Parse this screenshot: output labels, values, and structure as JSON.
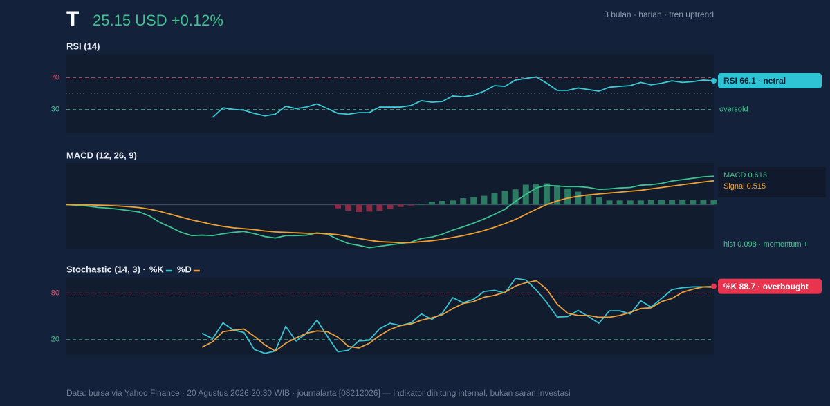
{
  "header": {
    "symbol": "T",
    "quote": "25.15 USD +0.12%",
    "meta": "3 bulan · harian · tren uptrend"
  },
  "footer": "Data: bursa via Yahoo Finance · 20 Agustus 2026 20:30 WIB · journalarta [08212026] — indikator dihitung internal, bukan saran investasi",
  "chart_data": [
    {
      "type": "line",
      "title": "RSI (14)",
      "ylim": [
        0,
        100
      ],
      "yticks": [
        30,
        70
      ],
      "level_colors": [
        "#3ec28f",
        "#e05570"
      ],
      "midline": 50,
      "annotation": "oversold",
      "label_style": "badge",
      "series": [
        {
          "name": "RSI",
          "color": "#3cc8d4",
          "badge_color": "#2ec4d6",
          "badge_text_color": "#0e1a2b",
          "last_label": "RSI 66.1 · netral",
          "values": [
            null,
            null,
            null,
            null,
            null,
            null,
            null,
            null,
            null,
            null,
            null,
            null,
            null,
            null,
            20,
            32,
            30,
            29,
            25,
            22,
            24,
            34,
            31,
            33,
            37,
            31,
            25,
            24,
            26,
            26,
            33,
            33,
            33,
            35,
            41,
            39,
            40,
            47,
            46,
            48,
            53,
            60,
            59,
            67,
            69,
            71,
            63,
            54,
            54,
            57,
            55,
            53,
            58,
            59,
            60,
            64,
            61,
            63,
            66,
            64,
            65,
            67,
            66.1
          ]
        }
      ]
    },
    {
      "type": "line",
      "title": "MACD (12, 26, 9)",
      "ylim": [
        -0.95,
        0.9
      ],
      "zero_line": true,
      "label_style": "legend",
      "series": [
        {
          "name": "MACD",
          "color": "#3ec28f",
          "last_label": "MACD 0.613",
          "values": [
            0,
            -0.015,
            -0.03,
            -0.06,
            -0.075,
            -0.1,
            -0.13,
            -0.16,
            -0.25,
            -0.39,
            -0.49,
            -0.6,
            -0.67,
            -0.66,
            -0.67,
            -0.63,
            -0.6,
            -0.58,
            -0.63,
            -0.69,
            -0.72,
            -0.67,
            -0.67,
            -0.66,
            -0.61,
            -0.64,
            -0.75,
            -0.84,
            -0.88,
            -0.93,
            -0.9,
            -0.87,
            -0.84,
            -0.81,
            -0.73,
            -0.7,
            -0.64,
            -0.55,
            -0.48,
            -0.4,
            -0.31,
            -0.21,
            -0.1,
            0.07,
            0.22,
            0.36,
            0.42,
            0.4,
            0.39,
            0.39,
            0.37,
            0.33,
            0.34,
            0.36,
            0.37,
            0.42,
            0.43,
            0.46,
            0.51,
            0.54,
            0.57,
            0.6,
            0.613
          ]
        },
        {
          "name": "Signal",
          "color": "#f0a030",
          "last_label": "Signal 0.515",
          "values": [
            0,
            -0.002,
            -0.006,
            -0.012,
            -0.02,
            -0.03,
            -0.045,
            -0.065,
            -0.1,
            -0.15,
            -0.21,
            -0.27,
            -0.33,
            -0.38,
            -0.43,
            -0.47,
            -0.5,
            -0.52,
            -0.54,
            -0.57,
            -0.59,
            -0.6,
            -0.61,
            -0.62,
            -0.62,
            -0.63,
            -0.65,
            -0.69,
            -0.73,
            -0.77,
            -0.8,
            -0.81,
            -0.82,
            -0.82,
            -0.8,
            -0.78,
            -0.75,
            -0.71,
            -0.67,
            -0.62,
            -0.56,
            -0.49,
            -0.41,
            -0.32,
            -0.21,
            -0.1,
            0,
            0.08,
            0.14,
            0.18,
            0.21,
            0.23,
            0.25,
            0.27,
            0.29,
            0.31,
            0.34,
            0.37,
            0.4,
            0.43,
            0.46,
            0.49,
            0.515
          ]
        },
        {
          "name": "hist",
          "type": "bar",
          "color": "#2c7a62",
          "negative_color": "#8a2a44",
          "label_color": "#3ec28f",
          "last_label": "hist 0.098 · momentum +",
          "values": [
            null,
            null,
            null,
            null,
            null,
            null,
            null,
            null,
            null,
            null,
            null,
            null,
            null,
            null,
            null,
            null,
            null,
            null,
            null,
            null,
            null,
            null,
            null,
            null,
            null,
            null,
            -0.08,
            -0.13,
            -0.16,
            -0.15,
            -0.13,
            -0.09,
            -0.05,
            -0.02,
            0.02,
            0.06,
            0.08,
            0.09,
            0.14,
            0.16,
            0.19,
            0.25,
            0.3,
            0.33,
            0.43,
            0.45,
            0.46,
            0.42,
            0.35,
            0.28,
            0.22,
            0.16,
            0.09,
            0.09,
            0.09,
            0.09,
            0.1,
            0.1,
            0.1,
            0.1,
            0.1,
            0.1,
            0.098
          ]
        }
      ]
    },
    {
      "type": "line",
      "title": "Stochastic (14, 3) ·",
      "ylim": [
        0,
        100
      ],
      "yticks": [
        20,
        80
      ],
      "level_colors": [
        "#3ec28f",
        "#e05570"
      ],
      "legend": true,
      "label_style": "badge",
      "series": [
        {
          "name": "%K",
          "color": "#39c2d0",
          "badge_color": "#e8344e",
          "badge_text_color": "#ffffff",
          "last_label": "%K 88.7 · overbought",
          "values": [
            null,
            null,
            null,
            null,
            null,
            null,
            null,
            null,
            null,
            null,
            null,
            null,
            null,
            28,
            21,
            41.5,
            32,
            29,
            7,
            2,
            5,
            37,
            18,
            28,
            45,
            24,
            4,
            6,
            18,
            19,
            34,
            41,
            38,
            41.5,
            53,
            46,
            54,
            74,
            67.5,
            72,
            82,
            83.6,
            80,
            99,
            97,
            84,
            68,
            49,
            49.6,
            57.6,
            49.6,
            41,
            57,
            57,
            53,
            70,
            62,
            73,
            84.5,
            87,
            88,
            88,
            88.7
          ]
        },
        {
          "name": "%D",
          "color": "#e8a040",
          "values": [
            null,
            null,
            null,
            null,
            null,
            null,
            null,
            null,
            null,
            null,
            null,
            null,
            null,
            10,
            17,
            30,
            32,
            33.5,
            24,
            13,
            5,
            15,
            22,
            28,
            31,
            30,
            23,
            11,
            9,
            15,
            25,
            33,
            38,
            40,
            45,
            48,
            52,
            60,
            66.5,
            69,
            74.6,
            77,
            81,
            89,
            93.4,
            96,
            85,
            65.7,
            54,
            51,
            51,
            48.7,
            48.7,
            51,
            55,
            60,
            61,
            69,
            73,
            81,
            85,
            88,
            87.5
          ]
        }
      ]
    }
  ]
}
